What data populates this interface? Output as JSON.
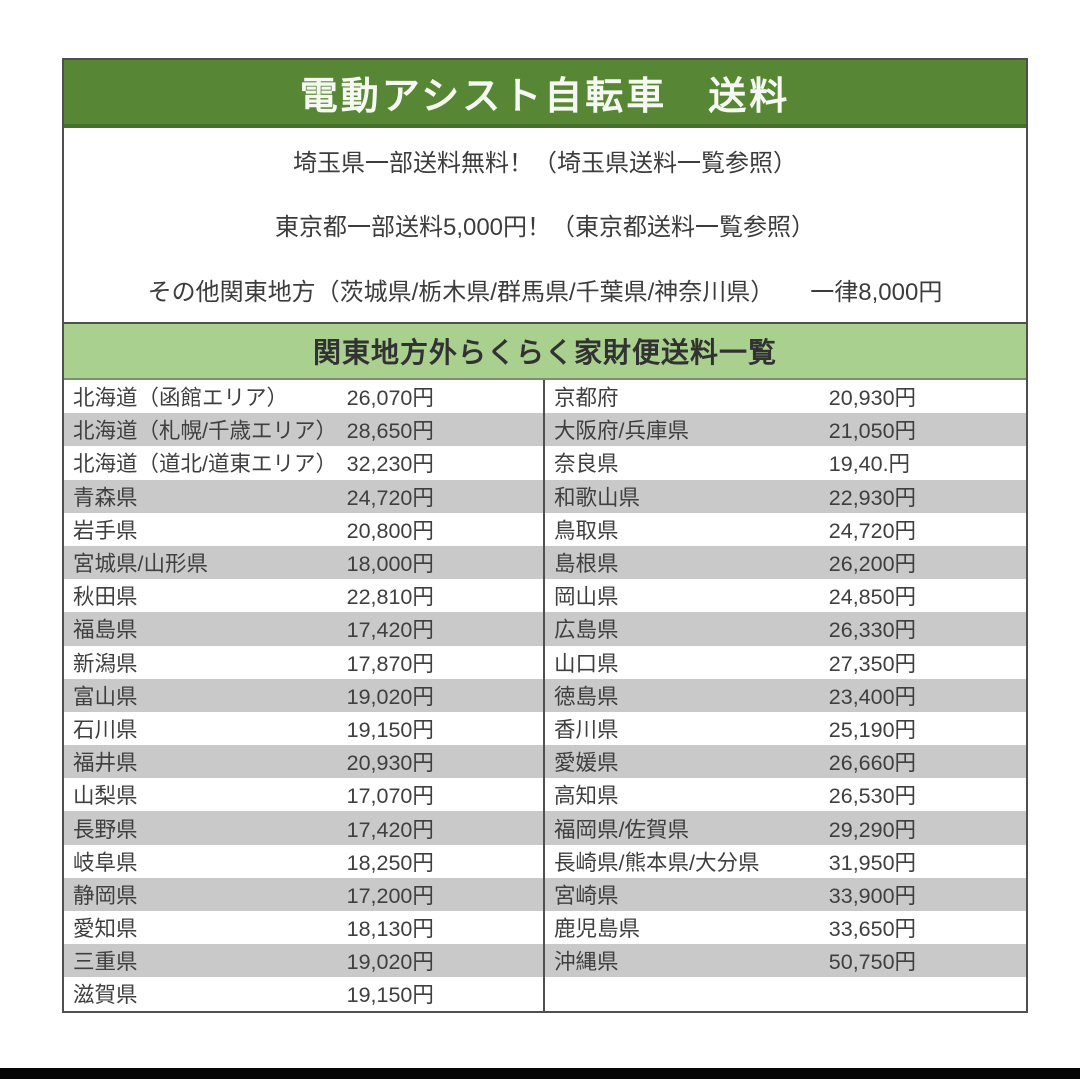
{
  "header": {
    "title": "電動アシスト自転車　送料"
  },
  "notes": [
    "埼玉県一部送料無料！（埼玉県送料一覧参照）",
    "東京都一部送料5,000円！（東京都送料一覧参照）",
    "その他関東地方（茨城県/栃木県/群馬県/千葉県/神奈川県）　　一律8,000円"
  ],
  "table": {
    "title": "関東地方外らくらく家財便送料一覧",
    "left_rows": [
      {
        "region": "北海道（函館エリア）",
        "price": "26,070円"
      },
      {
        "region": "北海道（札幌/千歳エリア）",
        "price": "28,650円"
      },
      {
        "region": "北海道（道北/道東エリア）",
        "price": "32,230円"
      },
      {
        "region": "青森県",
        "price": "24,720円"
      },
      {
        "region": "岩手県",
        "price": "20,800円"
      },
      {
        "region": "宮城県/山形県",
        "price": "18,000円"
      },
      {
        "region": "秋田県",
        "price": "22,810円"
      },
      {
        "region": "福島県",
        "price": "17,420円"
      },
      {
        "region": "新潟県",
        "price": "17,870円"
      },
      {
        "region": "富山県",
        "price": "19,020円"
      },
      {
        "region": "石川県",
        "price": "19,150円"
      },
      {
        "region": "福井県",
        "price": "20,930円"
      },
      {
        "region": "山梨県",
        "price": "17,070円"
      },
      {
        "region": "長野県",
        "price": "17,420円"
      },
      {
        "region": "岐阜県",
        "price": "18,250円"
      },
      {
        "region": "静岡県",
        "price": "17,200円"
      },
      {
        "region": "愛知県",
        "price": "18,130円"
      },
      {
        "region": "三重県",
        "price": "19,020円"
      },
      {
        "region": "滋賀県",
        "price": "19,150円"
      }
    ],
    "right_rows": [
      {
        "region": "京都府",
        "price": "20,930円"
      },
      {
        "region": "大阪府/兵庫県",
        "price": "21,050円"
      },
      {
        "region": "奈良県",
        "price": "19,40.円"
      },
      {
        "region": "和歌山県",
        "price": "22,930円"
      },
      {
        "region": "鳥取県",
        "price": "24,720円"
      },
      {
        "region": "島根県",
        "price": "26,200円"
      },
      {
        "region": "岡山県",
        "price": "24,850円"
      },
      {
        "region": "広島県",
        "price": "26,330円"
      },
      {
        "region": "山口県",
        "price": "27,350円"
      },
      {
        "region": "徳島県",
        "price": "23,400円"
      },
      {
        "region": "香川県",
        "price": "25,190円"
      },
      {
        "region": "愛媛県",
        "price": "26,660円"
      },
      {
        "region": "高知県",
        "price": "26,530円"
      },
      {
        "region": "福岡県/佐賀県",
        "price": "29,290円"
      },
      {
        "region": "長崎県/熊本県/大分県",
        "price": "31,950円"
      },
      {
        "region": "宮崎県",
        "price": "33,900円"
      },
      {
        "region": "鹿児島県",
        "price": "33,650円"
      },
      {
        "region": "沖縄県",
        "price": "50,750円"
      },
      {
        "region": "",
        "price": ""
      }
    ]
  },
  "colors": {
    "header_green": "#578635",
    "header_green_dark": "#44702a",
    "title_bar_green": "#a9d08e",
    "row_gray": "#c9c9c9",
    "border_dark": "#4f4f4f",
    "footer_black": "#060606"
  }
}
